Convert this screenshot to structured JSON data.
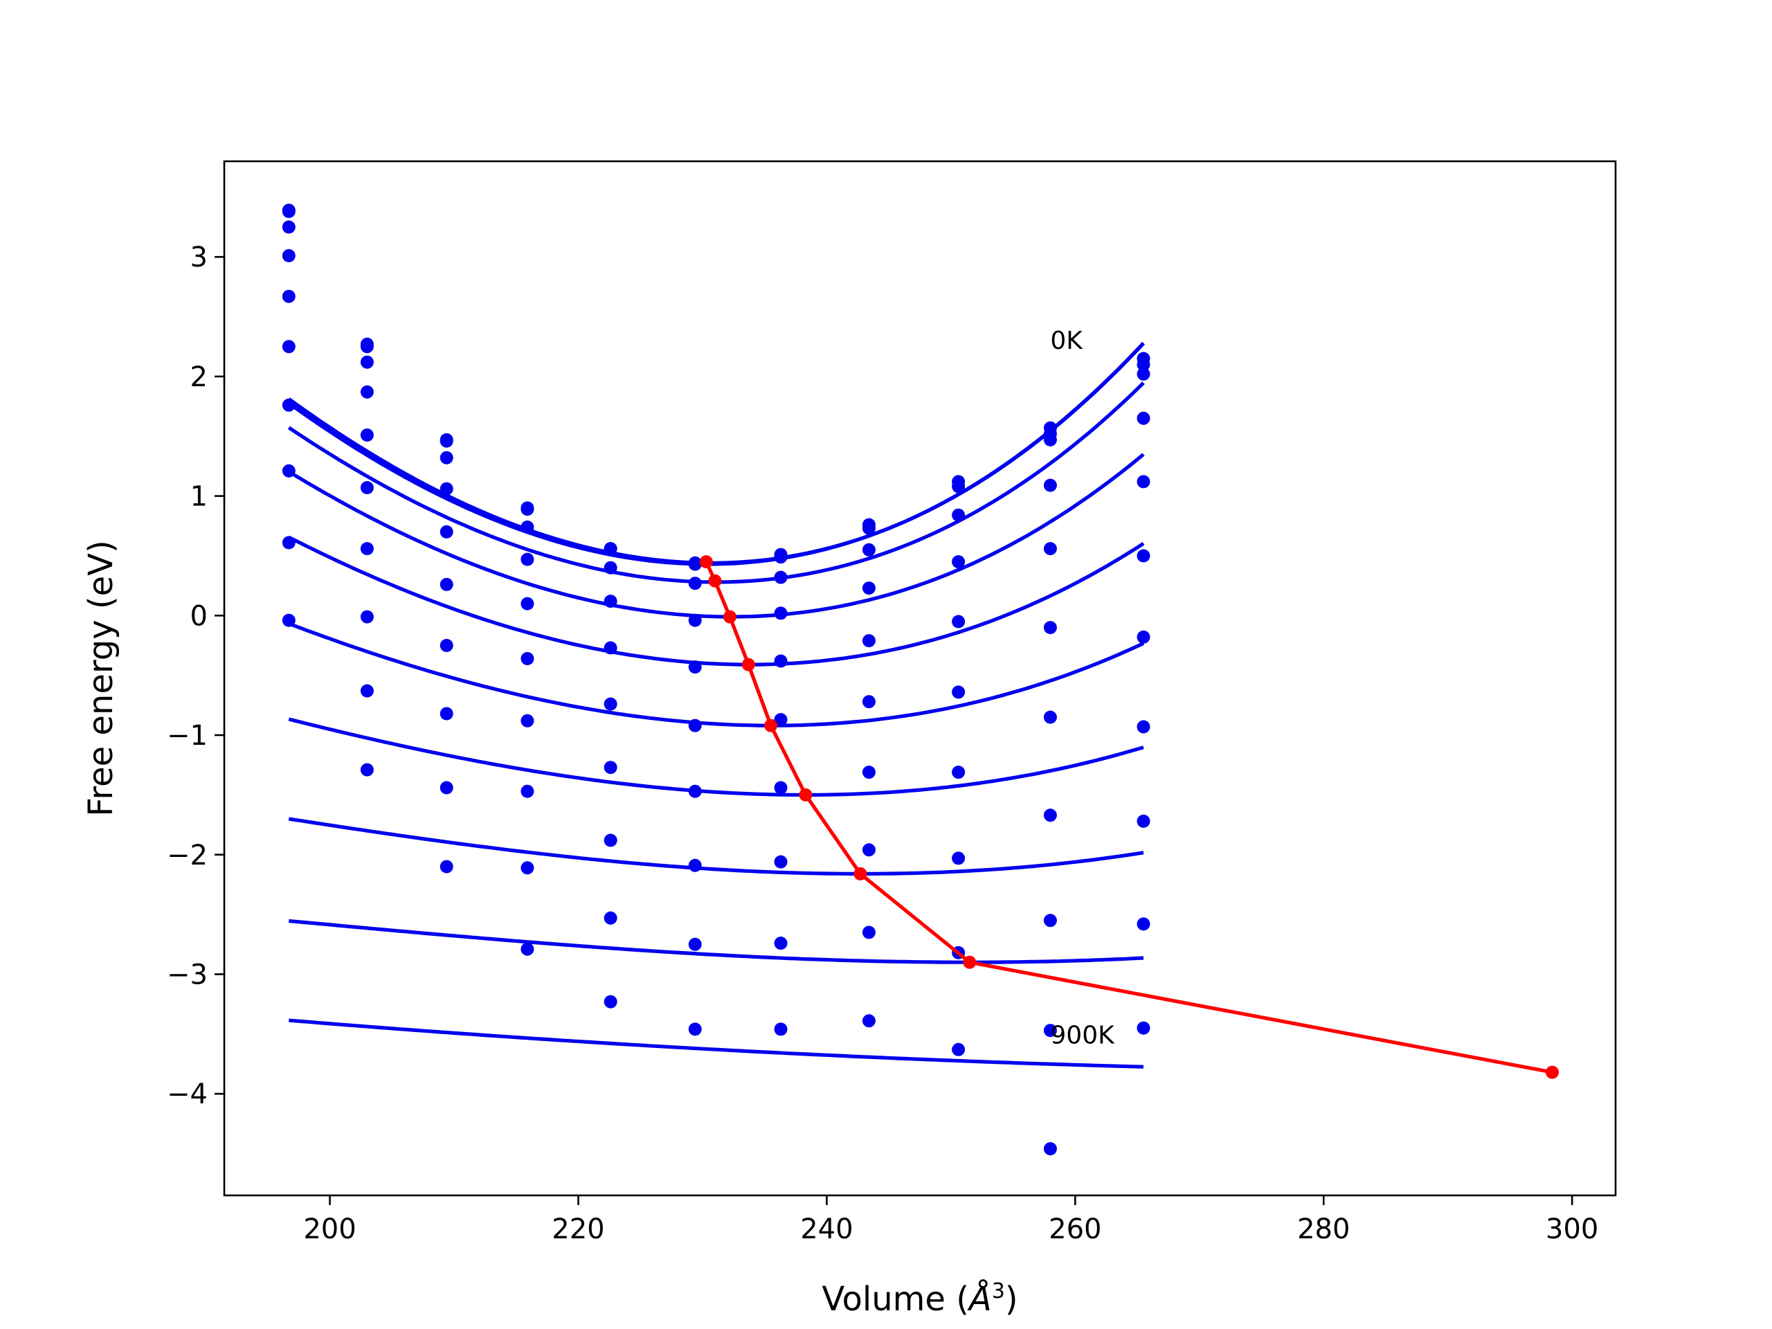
{
  "chart_data": {
    "type": "line",
    "xlabel": "Volume (",
    "xlabel_symbol": "Å",
    "xlabel_exp": "3",
    "xlabel_close": ")",
    "ylabel": "Free energy (eV)",
    "xlim": [
      191.5,
      303.5
    ],
    "ylim": [
      -4.85,
      3.8
    ],
    "xticks": [
      200,
      220,
      240,
      260,
      280,
      300
    ],
    "yticks": [
      3,
      2,
      1,
      0,
      -1,
      -2,
      -3,
      -4
    ],
    "ytick_labels": [
      "3",
      "2",
      "1",
      "0",
      "−1",
      "−2",
      "−3",
      "−4"
    ],
    "annotations": [
      {
        "text": "0K",
        "x": 258.0,
        "y": 2.23
      },
      {
        "text": "900K",
        "x": 258.0,
        "y": -3.58
      }
    ],
    "colors": {
      "data": "#0000ee",
      "eq_line": "#ff0000",
      "axes": "#000000"
    },
    "volumes": [
      196.7,
      203.0,
      209.4,
      215.9,
      222.6,
      229.4,
      236.3,
      243.4,
      250.6,
      258.0,
      265.5
    ],
    "fit_range": [
      196.7,
      265.5
    ],
    "series": [
      {
        "points": [
          3.39,
          2.27,
          1.47,
          0.9,
          0.56,
          0.44,
          0.51,
          0.76,
          1.12,
          1.57,
          2.15
        ],
        "fit": {
          "V0": 230.7,
          "E0": 0.44,
          "a": 0.00135,
          "b": 4.8e-06
        }
      },
      {
        "points": [
          3.38,
          2.25,
          1.46,
          0.89,
          0.56,
          0.43,
          0.49,
          0.73,
          1.08,
          1.52,
          2.1
        ],
        "fit": {
          "V0": 230.4,
          "E0": 0.43,
          "a": 0.00134,
          "b": 4.6e-06
        }
      },
      {
        "points": [
          3.25,
          2.12,
          1.32,
          0.74,
          0.4,
          0.27,
          0.32,
          0.55,
          0.84,
          1.47,
          2.02
        ],
        "fit": {
          "V0": 231.1,
          "E0": 0.28,
          "a": 0.00125,
          "b": 4.6e-06
        }
      },
      {
        "points": [
          3.01,
          1.87,
          1.06,
          0.47,
          0.12,
          -0.04,
          0.02,
          0.23,
          0.45,
          1.09,
          1.65
        ],
        "fit": {
          "V0": 232.3,
          "E0": -0.01,
          "a": 0.0011,
          "b": 4e-06
        }
      },
      {
        "points": [
          2.67,
          1.51,
          0.7,
          0.1,
          -0.27,
          -0.43,
          -0.38,
          -0.21,
          -0.05,
          0.56,
          1.12
        ],
        "fit": {
          "V0": 233.8,
          "E0": -0.41,
          "a": 0.0009,
          "b": 3.4e-06
        }
      },
      {
        "points": [
          2.25,
          1.07,
          0.26,
          -0.36,
          -0.74,
          -0.92,
          -0.87,
          -0.72,
          -0.64,
          -0.1,
          0.5
        ],
        "fit": {
          "V0": 235.6,
          "E0": -0.92,
          "a": 0.00068,
          "b": 3e-06
        }
      },
      {
        "points": [
          1.76,
          0.56,
          -0.25,
          -0.88,
          -1.27,
          -1.47,
          -1.44,
          -1.31,
          -1.31,
          -0.85,
          -0.18
        ],
        "fit": {
          "V0": 238.3,
          "E0": -1.5,
          "a": 0.00047,
          "b": 2.5e-06
        }
      },
      {
        "points": [
          1.21,
          -0.01,
          -0.82,
          -1.47,
          -1.88,
          -2.09,
          -2.06,
          -1.96,
          -2.03,
          -1.67,
          -0.93
        ],
        "fit": {
          "V0": 242.7,
          "E0": -2.16,
          "a": 0.0003,
          "b": 1.8e-06
        }
      },
      {
        "points": [
          0.61,
          -0.63,
          -1.44,
          -2.11,
          -2.53,
          -2.75,
          -2.74,
          -2.65,
          -2.82,
          -2.55,
          -1.72
        ],
        "fit": {
          "V0": 251.5,
          "E0": -2.9,
          "a": 0.00017,
          "b": 1e-06
        }
      },
      {
        "points": [
          -0.04,
          -1.29,
          -2.1,
          -2.79,
          -3.23,
          -3.46,
          -3.46,
          -3.39,
          -3.63,
          -3.47,
          -2.58
        ],
        "fit": {
          "V0": 298.4,
          "E0": -3.82,
          "a": 4.2e-05,
          "b": 0.0
        }
      },
      {
        "points": [
          null,
          null,
          null,
          null,
          null,
          null,
          null,
          null,
          null,
          -4.46,
          -3.45
        ],
        "fit": null
      }
    ],
    "equilibrium": {
      "x": [
        230.3,
        231.0,
        232.2,
        233.7,
        235.5,
        238.3,
        242.7,
        251.5,
        298.4
      ],
      "y": [
        0.45,
        0.29,
        -0.01,
        -0.41,
        -0.92,
        -1.5,
        -2.16,
        -2.9,
        -3.82
      ]
    }
  }
}
